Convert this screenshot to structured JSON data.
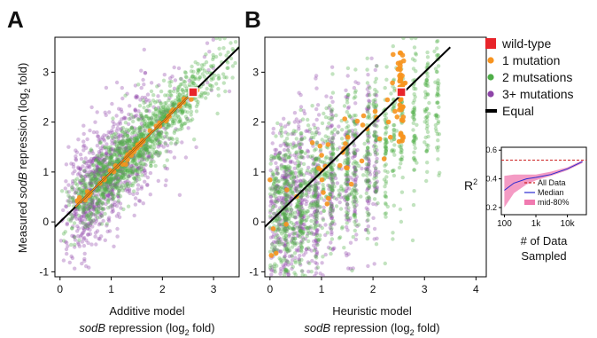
{
  "panels": {
    "A": {
      "letter": "A",
      "xlabel_line1": "Additive model",
      "xlabel_line2_pre": "sodB",
      "xlabel_line2_post": " repression (log",
      "xlabel_line2_sub": "2",
      "xlabel_line2_end": " fold)",
      "ylabel_pre": "Measured ",
      "ylabel_ital": "sodB",
      "ylabel_post": " repression (log",
      "ylabel_sub": "2",
      "ylabel_end": " fold)"
    },
    "B": {
      "letter": "B",
      "xlabel_line1": "Heuristic model",
      "xlabel_line2_pre": "sodB",
      "xlabel_line2_post": " repression (log",
      "xlabel_line2_sub": "2",
      "xlabel_line2_end": " fold)"
    }
  },
  "legend": {
    "items": [
      {
        "label": "wild-type",
        "color": "#e8242a",
        "marker": "square"
      },
      {
        "label": "1 mutation",
        "color": "#f7931e",
        "marker": "circle"
      },
      {
        "label": "2 mutsations",
        "color": "#4fae48",
        "marker": "circle"
      },
      {
        "label": "3+ mutations",
        "color": "#8e44a8",
        "marker": "circle"
      },
      {
        "label": "Equal",
        "color": "#000000",
        "marker": "line"
      }
    ]
  },
  "inset": {
    "ylabel": "R",
    "ylabel_sup": "2",
    "xlabel_line1": "# of Data",
    "xlabel_line2": "Sampled",
    "legend": [
      {
        "label": "All Data",
        "color": "#cc2222",
        "style": "dashed"
      },
      {
        "label": "Median",
        "color": "#2a2ad0",
        "style": "solid"
      },
      {
        "label": "mid-80%",
        "color": "#f07ab0",
        "style": "band"
      }
    ]
  },
  "chart_data": [
    {
      "type": "scatter",
      "panel": "A",
      "xlim": [
        -0.1,
        3.5
      ],
      "ylim": [
        -1.1,
        3.7
      ],
      "xticks": [
        0,
        1,
        2,
        3
      ],
      "yticks": [
        -1,
        0,
        1,
        2,
        3
      ],
      "wild_type": {
        "x": 2.6,
        "y": 2.6
      },
      "equal_line": [
        [
          -0.1,
          -0.1
        ],
        [
          3.5,
          3.5
        ]
      ],
      "series": [
        {
          "name": "3+ mutations",
          "color": "#8e44a8",
          "approx_count": 900
        },
        {
          "name": "2 mutsations",
          "color": "#4fae48",
          "approx_count": 1300
        },
        {
          "name": "1 mutation",
          "color": "#f7931e",
          "approx_count": 60
        }
      ]
    },
    {
      "type": "scatter",
      "panel": "B",
      "xlim": [
        -0.1,
        4.2
      ],
      "ylim": [
        -1.1,
        3.7
      ],
      "xticks": [
        0,
        1,
        2,
        3,
        4
      ],
      "yticks": [
        -1,
        0,
        1,
        2,
        3
      ],
      "wild_type": {
        "x": 2.55,
        "y": 2.6
      },
      "equal_line": [
        [
          -0.1,
          -0.1
        ],
        [
          3.5,
          3.5
        ]
      ],
      "series": [
        {
          "name": "3+ mutations",
          "color": "#8e44a8",
          "approx_count": 900
        },
        {
          "name": "2 mutsations",
          "color": "#4fae48",
          "approx_count": 1300
        },
        {
          "name": "1 mutation",
          "color": "#f7931e",
          "approx_count": 90
        }
      ]
    },
    {
      "type": "line",
      "panel": "inset",
      "xscale": "log",
      "xlim": [
        80,
        40000
      ],
      "ylim": [
        0.15,
        0.62
      ],
      "xtick_labels": [
        "100",
        "1k",
        "10k"
      ],
      "xtick_values": [
        100,
        1000,
        10000
      ],
      "yticks": [
        0.2,
        0.4,
        0.6
      ],
      "series": [
        {
          "name": "All Data",
          "style": "dashed",
          "x": [
            80,
            40000
          ],
          "y": [
            0.53,
            0.53
          ]
        },
        {
          "name": "Median",
          "x": [
            100,
            200,
            500,
            1000,
            3000,
            10000,
            30000
          ],
          "y": [
            0.32,
            0.37,
            0.4,
            0.41,
            0.43,
            0.47,
            0.52
          ]
        },
        {
          "name": "mid-80%",
          "x": [
            100,
            200,
            500,
            1000,
            3000,
            10000,
            30000
          ],
          "lower": [
            0.2,
            0.3,
            0.36,
            0.39,
            0.42,
            0.46,
            0.51
          ],
          "upper": [
            0.42,
            0.43,
            0.43,
            0.43,
            0.45,
            0.48,
            0.53
          ]
        }
      ]
    }
  ]
}
